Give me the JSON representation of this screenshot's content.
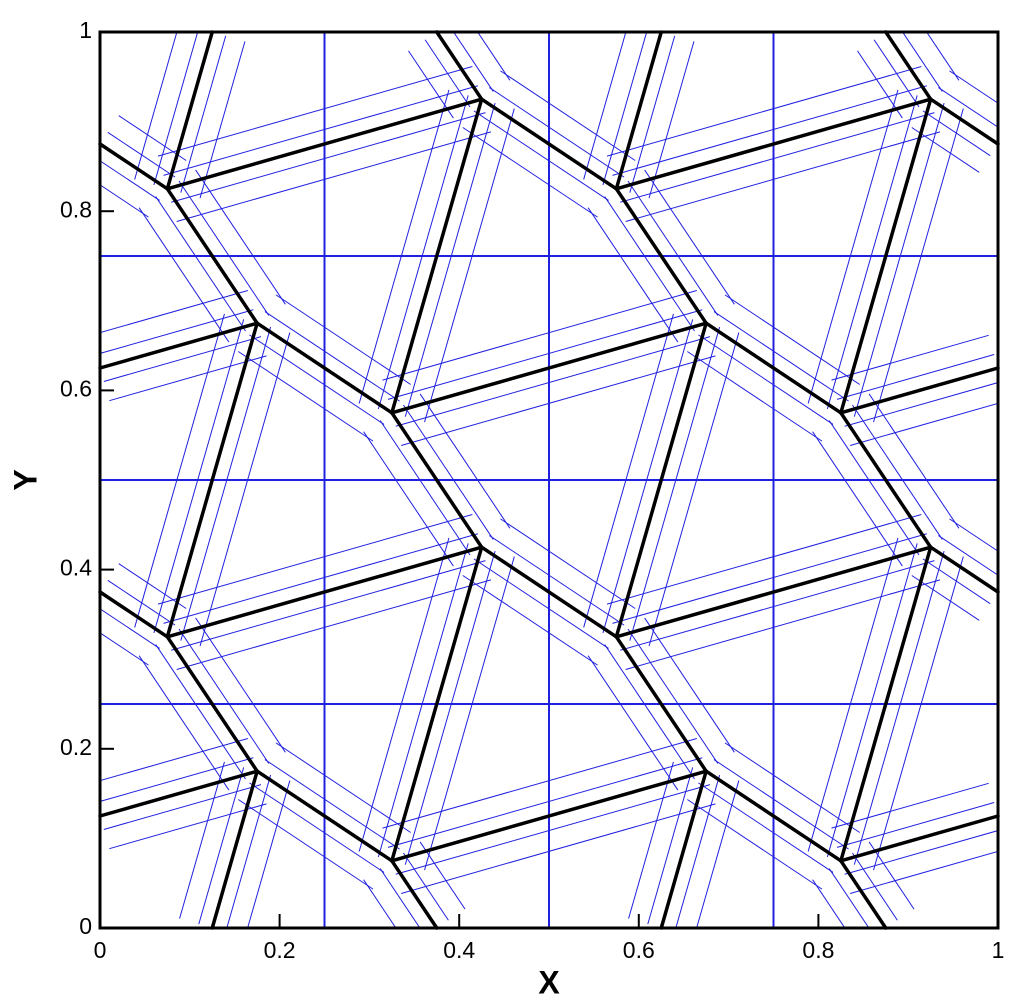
{
  "chart_data": {
    "type": "segments",
    "xlabel": "X",
    "ylabel": "Y",
    "xlim": [
      0,
      1
    ],
    "ylim": [
      0,
      1
    ],
    "xticks": [
      0,
      0.2,
      0.4,
      0.6,
      0.8,
      1
    ],
    "yticks": [
      0,
      0.2,
      0.4,
      0.6,
      0.8,
      1
    ],
    "color": "#000000",
    "mesh_color": "#2020e0",
    "segments": [
      [
        0.075,
        0.325,
        0.425,
        0.425
      ],
      [
        0.425,
        0.425,
        0.325,
        0.075
      ],
      [
        0.075,
        0.325,
        0.175,
        0.175
      ],
      [
        0.175,
        0.175,
        0.325,
        0.075
      ],
      [
        0.325,
        0.075,
        0.375,
        0
      ],
      [
        0.425,
        0.425,
        0.575,
        0.325
      ],
      [
        0.325,
        0.075,
        0.675,
        0.175
      ],
      [
        0.075,
        0.325,
        0.175,
        0.675
      ],
      [
        0.575,
        0.325,
        0.925,
        0.425
      ],
      [
        0.925,
        0.425,
        0.825,
        0.075
      ],
      [
        0.575,
        0.325,
        0.675,
        0.175
      ],
      [
        0.675,
        0.175,
        0.825,
        0.075
      ],
      [
        0.825,
        0.075,
        0.875,
        0
      ],
      [
        0.925,
        0.425,
        1,
        0.375
      ],
      [
        0.825,
        0.075,
        1,
        0.125
      ],
      [
        0.575,
        0.325,
        0.675,
        0.675
      ],
      [
        0.075,
        0.825,
        0.425,
        0.925
      ],
      [
        0.425,
        0.925,
        0.325,
        0.575
      ],
      [
        0.075,
        0.825,
        0.175,
        0.675
      ],
      [
        0.175,
        0.675,
        0.325,
        0.575
      ],
      [
        0.325,
        0.575,
        0.425,
        0.425
      ],
      [
        0.425,
        0.925,
        0.575,
        0.825
      ],
      [
        0.325,
        0.575,
        0.675,
        0.675
      ],
      [
        0.075,
        0.825,
        0.125,
        1
      ],
      [
        0.575,
        0.825,
        0.925,
        0.925
      ],
      [
        0.925,
        0.925,
        0.825,
        0.575
      ],
      [
        0.575,
        0.825,
        0.675,
        0.675
      ],
      [
        0.675,
        0.675,
        0.825,
        0.575
      ],
      [
        0.825,
        0.575,
        0.925,
        0.425
      ],
      [
        0.925,
        0.925,
        1,
        0.875
      ],
      [
        0.825,
        0.575,
        1,
        0.625
      ],
      [
        0.575,
        0.825,
        0.625,
        1
      ],
      [
        0,
        0.375,
        0.075,
        0.325
      ],
      [
        0,
        0.875,
        0.075,
        0.825
      ],
      [
        0,
        0.125,
        0.175,
        0.175
      ],
      [
        0,
        0.625,
        0.175,
        0.675
      ],
      [
        0.375,
        1,
        0.425,
        0.925
      ],
      [
        0.875,
        1,
        0.925,
        0.925
      ],
      [
        0.125,
        0,
        0.175,
        0.175
      ],
      [
        0.625,
        0,
        0.675,
        0.175
      ]
    ]
  }
}
